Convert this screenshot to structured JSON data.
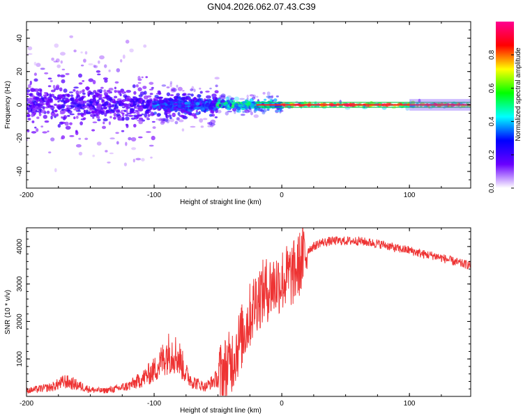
{
  "title": "GN04.2026.062.07.43.C39",
  "chart_data": [
    {
      "type": "heatmap",
      "xlabel": "Height of straight line (km)",
      "ylabel": "Frequency (Hz)",
      "xlim": [
        -200,
        148
      ],
      "ylim": [
        -50,
        50
      ],
      "xticks": [
        -200,
        -100,
        0,
        100
      ],
      "yticks": [
        -40,
        -20,
        0,
        20,
        40
      ],
      "xtick_labels": [
        "-200",
        "-100",
        "0",
        "100"
      ],
      "ytick_labels": [
        "-40",
        "-20",
        "0",
        "20",
        "40"
      ],
      "colorbar": {
        "label": "Normalized spectral amplitude",
        "range": [
          0,
          1
        ],
        "ticks": [
          0.0,
          0.2,
          0.4,
          0.6,
          0.8
        ],
        "tick_labels": [
          "0.0",
          "0.2",
          "0.4",
          "0.6",
          "0.8"
        ],
        "colors": [
          "#ffffff",
          "#6a00ff",
          "#0000ff",
          "#00ffff",
          "#00ff00",
          "#ffff00",
          "#ff0000",
          "#ff0090"
        ]
      },
      "ridge_line_hz": 0,
      "regions": [
        {
          "x_from": -200,
          "x_to": -100,
          "spread_hz": 50,
          "amplitude": 0.2
        },
        {
          "x_from": -100,
          "x_to": -50,
          "spread_hz": 20,
          "amplitude": 0.3
        },
        {
          "x_from": -50,
          "x_to": 0,
          "spread_hz": 8,
          "amplitude": 0.5
        },
        {
          "x_from": 0,
          "x_to": 148,
          "spread_hz": 3,
          "amplitude": 0.9
        }
      ]
    },
    {
      "type": "line",
      "xlabel": "Height of straight line (km)",
      "ylabel": "SNR (10 * v/v)",
      "xlim": [
        -200,
        148
      ],
      "ylim": [
        0,
        4500
      ],
      "xticks": [
        -200,
        -100,
        0,
        100
      ],
      "yticks": [
        1000,
        2000,
        3000,
        4000
      ],
      "xtick_labels": [
        "-200",
        "-100",
        "0",
        "100"
      ],
      "ytick_labels": [
        "1000",
        "2000",
        "3000",
        "4000"
      ],
      "series": [
        {
          "name": "SNR",
          "color": "#ee3333",
          "x": [
            -200,
            -190,
            -180,
            -170,
            -160,
            -150,
            -140,
            -130,
            -120,
            -110,
            -100,
            -95,
            -90,
            -85,
            -80,
            -75,
            -70,
            -60,
            -50,
            -40,
            -30,
            -20,
            -10,
            0,
            10,
            20,
            30,
            40,
            50,
            60,
            70,
            80,
            90,
            100,
            110,
            120,
            130,
            140,
            148
          ],
          "y": [
            150,
            200,
            250,
            400,
            300,
            180,
            150,
            200,
            280,
            450,
            700,
            900,
            1150,
            1200,
            1000,
            600,
            400,
            250,
            500,
            900,
            1700,
            2600,
            2900,
            3100,
            3300,
            3900,
            4100,
            4150,
            4150,
            4150,
            4100,
            4050,
            3950,
            3900,
            3800,
            3750,
            3650,
            3550,
            3500
          ]
        }
      ]
    }
  ]
}
